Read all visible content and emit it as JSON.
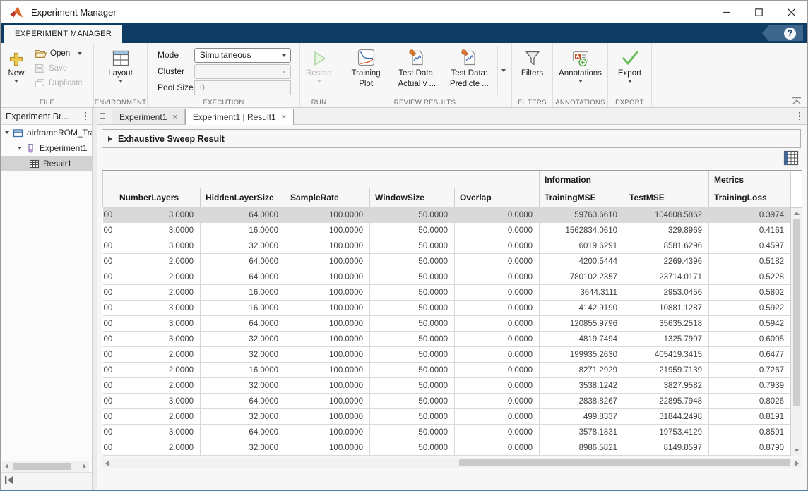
{
  "window": {
    "title": "Experiment Manager"
  },
  "ribbon": {
    "tab_label": "EXPERIMENT MANAGER",
    "help_glyph": "?"
  },
  "toolstrip": {
    "file": {
      "section_label": "FILE",
      "new_label": "New",
      "open_label": "Open",
      "save_label": "Save",
      "duplicate_label": "Duplicate"
    },
    "environment": {
      "section_label": "ENVIRONMENT",
      "layout_label": "Layout"
    },
    "execution": {
      "section_label": "EXECUTION",
      "mode_label": "Mode",
      "mode_value": "Simultaneous",
      "cluster_label": "Cluster",
      "cluster_value": "",
      "pool_size_label": "Pool Size",
      "pool_size_value": "0"
    },
    "run": {
      "section_label": "RUN",
      "restart_label": "Restart"
    },
    "review_results": {
      "section_label": "REVIEW RESULTS",
      "training_plot_line1": "Training",
      "training_plot_line2": "Plot",
      "test_actual_line1": "Test Data:",
      "test_actual_line2": "Actual v ...",
      "test_predicted_line1": "Test Data:",
      "test_predicted_line2": "Predicte ..."
    },
    "filters": {
      "section_label": "FILTERS",
      "filters_label": "Filters"
    },
    "annotations": {
      "section_label": "ANNOTATIONS",
      "annotations_label": "Annotations"
    },
    "export": {
      "section_label": "EXPORT",
      "export_label": "Export"
    }
  },
  "sidebar": {
    "header": "Experiment Br...",
    "items": [
      {
        "label": "airframeROM_Tra",
        "icon": "project-icon",
        "indent": 0,
        "expanded": true,
        "selected": false
      },
      {
        "label": "Experiment1",
        "icon": "experiment-icon",
        "indent": 1,
        "expanded": true,
        "selected": false
      },
      {
        "label": "Result1",
        "icon": "result-table-icon",
        "indent": 2,
        "selected": true
      }
    ]
  },
  "doc_tabs": [
    {
      "label": "Experiment1",
      "close": "×",
      "active": false
    },
    {
      "label": "Experiment1 | Result1",
      "close": "×",
      "active": true
    }
  ],
  "result_pane": {
    "section_title": "Exhaustive Sweep Result"
  },
  "table": {
    "group_headers": [
      {
        "label": "",
        "span": 6
      },
      {
        "label": "Information",
        "span": 2
      },
      {
        "label": "Metrics",
        "span": 1
      }
    ],
    "columns": [
      "NumberLayers",
      "HiddenLayerSize",
      "SampleRate",
      "WindowSize",
      "Overlap",
      "TrainingMSE",
      "TestMSE",
      "TrainingLoss"
    ],
    "clipped_first_column_fragment": "00",
    "rows": [
      {
        "fragment": "00",
        "selected": true,
        "cells": [
          "3.0000",
          "64.0000",
          "100.0000",
          "50.0000",
          "0.0000",
          "59763.6610",
          "104608.5862",
          "0.3974"
        ]
      },
      {
        "fragment": "00",
        "selected": false,
        "cells": [
          "3.0000",
          "16.0000",
          "100.0000",
          "50.0000",
          "0.0000",
          "1562834.0610",
          "329.8969",
          "0.4161"
        ]
      },
      {
        "fragment": "00",
        "selected": false,
        "cells": [
          "3.0000",
          "32.0000",
          "100.0000",
          "50.0000",
          "0.0000",
          "6019.6291",
          "8581.6296",
          "0.4597"
        ]
      },
      {
        "fragment": "00",
        "selected": false,
        "cells": [
          "2.0000",
          "64.0000",
          "100.0000",
          "50.0000",
          "0.0000",
          "4200.5444",
          "2269.4396",
          "0.5182"
        ]
      },
      {
        "fragment": "00",
        "selected": false,
        "cells": [
          "2.0000",
          "64.0000",
          "100.0000",
          "50.0000",
          "0.0000",
          "780102.2357",
          "23714.0171",
          "0.5228"
        ]
      },
      {
        "fragment": "00",
        "selected": false,
        "cells": [
          "2.0000",
          "16.0000",
          "100.0000",
          "50.0000",
          "0.0000",
          "3644.3111",
          "2953.0456",
          "0.5802"
        ]
      },
      {
        "fragment": "00",
        "selected": false,
        "cells": [
          "3.0000",
          "16.0000",
          "100.0000",
          "50.0000",
          "0.0000",
          "4142.9190",
          "10881.1287",
          "0.5922"
        ]
      },
      {
        "fragment": "00",
        "selected": false,
        "cells": [
          "3.0000",
          "64.0000",
          "100.0000",
          "50.0000",
          "0.0000",
          "120855.9796",
          "35635.2518",
          "0.5942"
        ]
      },
      {
        "fragment": "00",
        "selected": false,
        "cells": [
          "3.0000",
          "32.0000",
          "100.0000",
          "50.0000",
          "0.0000",
          "4819.7494",
          "1325.7997",
          "0.6005"
        ]
      },
      {
        "fragment": "00",
        "selected": false,
        "cells": [
          "2.0000",
          "32.0000",
          "100.0000",
          "50.0000",
          "0.0000",
          "199935.2630",
          "405419.3415",
          "0.6477"
        ]
      },
      {
        "fragment": "00",
        "selected": false,
        "cells": [
          "2.0000",
          "16.0000",
          "100.0000",
          "50.0000",
          "0.0000",
          "8271.2929",
          "21959.7139",
          "0.7267"
        ]
      },
      {
        "fragment": "00",
        "selected": false,
        "cells": [
          "2.0000",
          "32.0000",
          "100.0000",
          "50.0000",
          "0.0000",
          "3538.1242",
          "3827.9582",
          "0.7939"
        ]
      },
      {
        "fragment": "00",
        "selected": false,
        "cells": [
          "3.0000",
          "64.0000",
          "100.0000",
          "50.0000",
          "0.0000",
          "2838.8267",
          "22895.7948",
          "0.8026"
        ]
      },
      {
        "fragment": "00",
        "selected": false,
        "cells": [
          "2.0000",
          "32.0000",
          "100.0000",
          "50.0000",
          "0.0000",
          "499.8337",
          "31844.2498",
          "0.8191"
        ]
      },
      {
        "fragment": "00",
        "selected": false,
        "cells": [
          "3.0000",
          "64.0000",
          "100.0000",
          "50.0000",
          "0.0000",
          "3578.1831",
          "19753.4129",
          "0.8591"
        ]
      },
      {
        "fragment": "00",
        "selected": false,
        "cells": [
          "2.0000",
          "32.0000",
          "100.0000",
          "50.0000",
          "0.0000",
          "8986.5821",
          "8149.8597",
          "0.8790"
        ]
      }
    ]
  },
  "icons": {
    "matlab-logo-icon": "orange membrane triangle",
    "new-icon": "gold plus",
    "open-icon": "folder",
    "save-icon": "floppy disk (disabled)",
    "duplicate-icon": "overlapping pages (disabled)",
    "layout-icon": "window panes grid",
    "restart-icon": "green play triangle (disabled)",
    "training-plot-icon": "plot with blue and orange curves",
    "test-data-icon": "document chart with orange pin",
    "filters-icon": "funnel",
    "annotations-icon": "A note with green plus",
    "export-icon": "green checkmark",
    "help-icon": "question mark circle",
    "project-icon": "blue archive box",
    "experiment-icon": "purple vial",
    "result-table-icon": "data grid",
    "table-view-icon": "grid with blue first column"
  },
  "colors": {
    "ribbon_background": "#0e3c62",
    "accent_blue": "#3a6fae",
    "selected_row": "#d9d9d9",
    "disabled_text": "#b5b5b5",
    "export_green": "#5cb85c",
    "new_gold": "#e8c44a",
    "pin_orange": "#e07a33"
  }
}
